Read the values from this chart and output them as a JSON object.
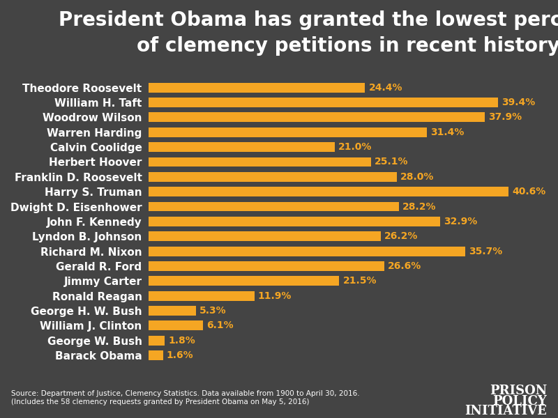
{
  "title": "President Obama has granted the lowest percentage\nof clemency petitions in recent history",
  "presidents": [
    "Theodore Roosevelt",
    "William H. Taft",
    "Woodrow Wilson",
    "Warren Harding",
    "Calvin Coolidge",
    "Herbert Hoover",
    "Franklin D. Roosevelt",
    "Harry S. Truman",
    "Dwight D. Eisenhower",
    "John F. Kennedy",
    "Lyndon B. Johnson",
    "Richard M. Nixon",
    "Gerald R. Ford",
    "Jimmy Carter",
    "Ronald Reagan",
    "George H. W. Bush",
    "William J. Clinton",
    "George W. Bush",
    "Barack Obama"
  ],
  "values": [
    24.4,
    39.4,
    37.9,
    31.4,
    21.0,
    25.1,
    28.0,
    40.6,
    28.2,
    32.9,
    26.2,
    35.7,
    26.6,
    21.5,
    11.9,
    5.3,
    6.1,
    1.8,
    1.6
  ],
  "bar_color": "#F5A623",
  "background_color": "#444444",
  "text_color": "#FFFFFF",
  "label_color": "#F5A623",
  "title_fontsize": 20,
  "label_fontsize": 11,
  "tick_fontsize": 11,
  "source_text": "Source: Department of Justice, Clemency Statistics. Data available from 1900 to April 30, 2016.\n(Includes the 58 clemency requests granted by President Obama on May 5, 2016)",
  "logo_line1": "PRISON",
  "logo_line2": "POLICY",
  "logo_line3": "INITIATIVE",
  "xlim": [
    0,
    45
  ]
}
